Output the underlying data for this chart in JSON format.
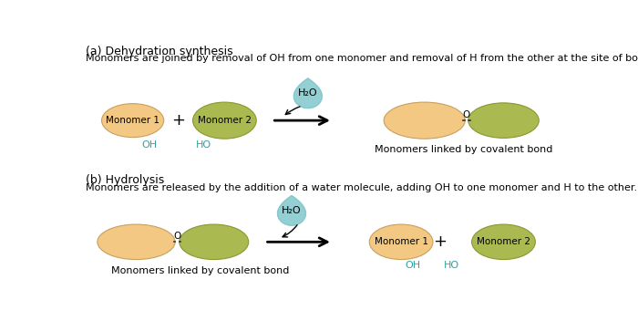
{
  "bg_color": "#ffffff",
  "monomer1_color": "#F2C882",
  "monomer2_color": "#ABBA50",
  "water_color": "#82C8CC",
  "oh_ho_color": "#30A0A0",
  "text_color": "#000000",
  "title_a": "(a) Dehydration synthesis",
  "desc_a": "Monomers are joined by removal of OH from one monomer and removal of H from the other at the site of bond formation.",
  "title_b": "(b) Hydrolysis",
  "desc_b": "Monomers are released by the addition of a water molecule, adding OH to one monomer and H to the other.",
  "label_covalent": "Monomers linked by covalent bond",
  "label_monomer1": "Monomer 1",
  "label_monomer2": "Monomer 2",
  "label_h2o": "H₂O",
  "label_oh": "OH",
  "label_ho": "HO",
  "label_o": "O",
  "label_plus": "+"
}
